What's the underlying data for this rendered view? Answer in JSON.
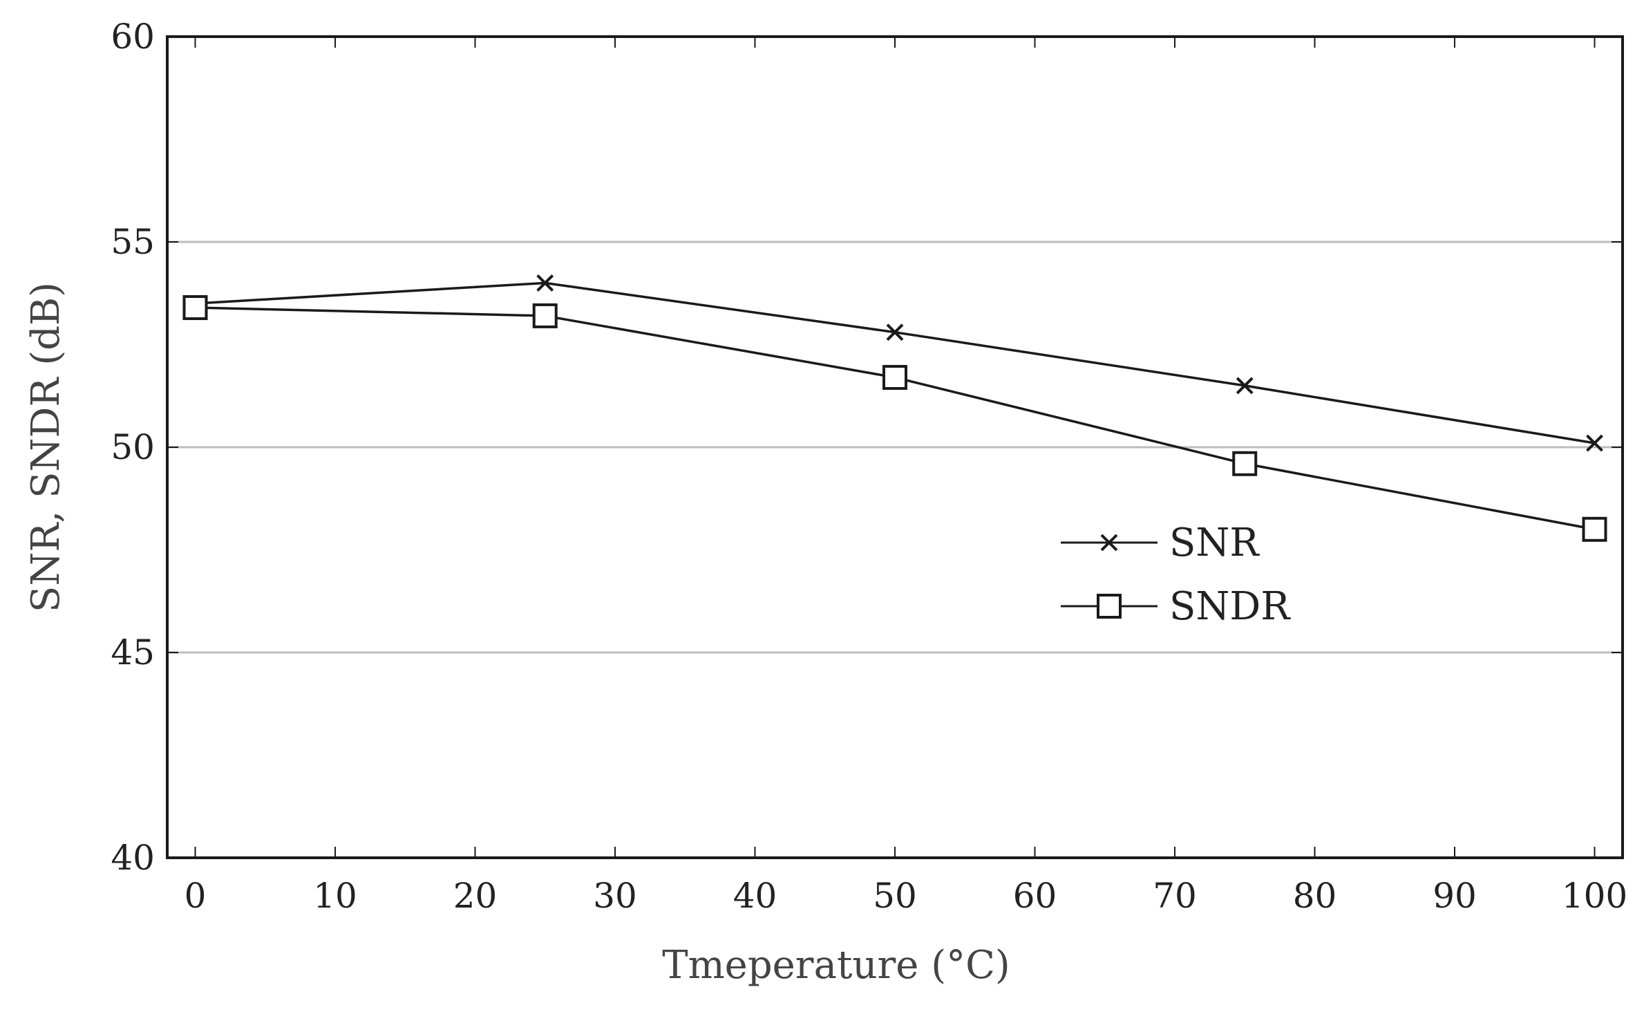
{
  "chart_data": {
    "type": "line",
    "title": "",
    "xlabel": "Tmeperature (°C)",
    "ylabel": "SNR, SNDR (dB)",
    "xlim": [
      -2,
      102
    ],
    "ylim": [
      40,
      60
    ],
    "x_ticks": [
      0,
      10,
      20,
      30,
      40,
      50,
      60,
      70,
      80,
      90,
      100
    ],
    "x_tick_labels": [
      "0",
      "10",
      "20",
      "30",
      "40",
      "50",
      "60",
      "70",
      "80",
      "90",
      "100"
    ],
    "y_ticks": [
      40,
      45,
      50,
      55,
      60
    ],
    "y_tick_labels": [
      "40",
      "45",
      "50",
      "55",
      "60"
    ],
    "grid": "horizontal",
    "legend_position": "center-right",
    "series": [
      {
        "name": "SNR",
        "marker": "cross",
        "x": [
          0,
          25,
          50,
          75,
          100
        ],
        "values": [
          53.5,
          54.0,
          52.8,
          51.5,
          50.1
        ]
      },
      {
        "name": "SNDR",
        "marker": "square",
        "x": [
          0,
          25,
          50,
          75,
          100
        ],
        "values": [
          53.4,
          53.2,
          51.7,
          49.6,
          48.0
        ]
      }
    ],
    "colors": {
      "line": "#1a1a1a",
      "grid": "#bdbdbd",
      "axis": "#1a1a1a"
    }
  }
}
